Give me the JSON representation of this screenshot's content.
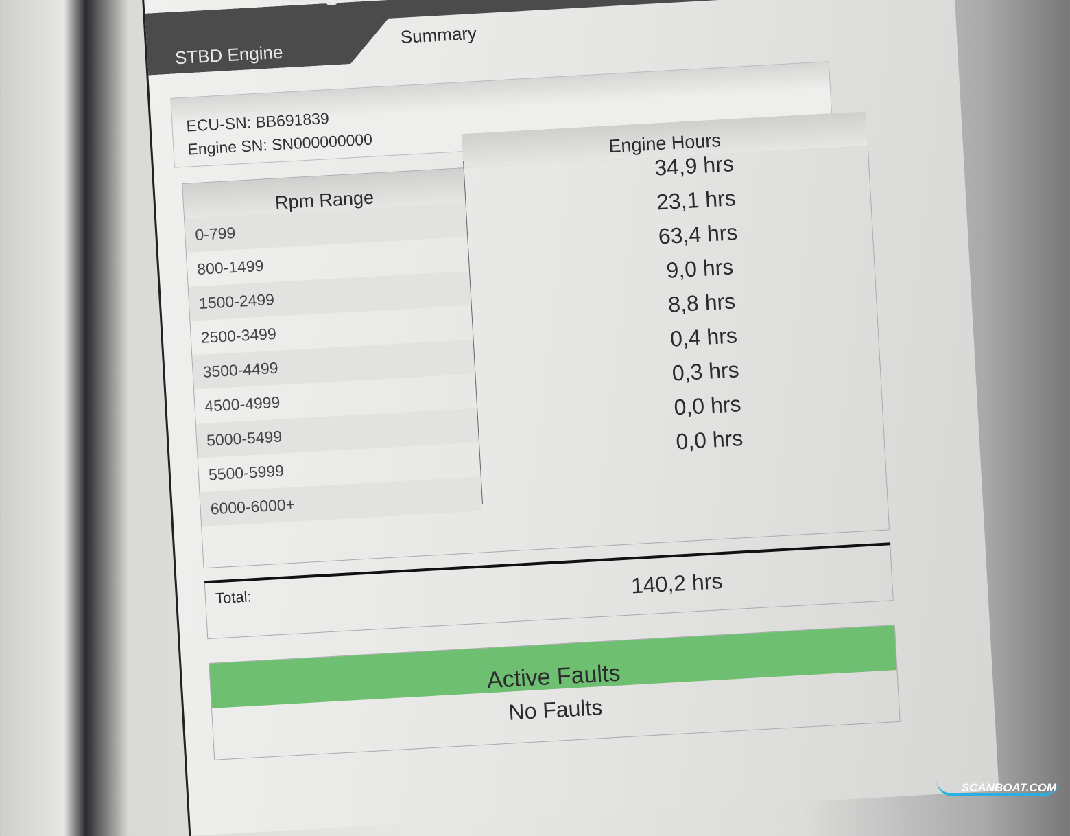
{
  "document": {
    "title": "Engine",
    "engine_tab": "STBD Engine",
    "summary_label": "Summary",
    "ecu_sn": "ECU-SN: BB691839",
    "engine_sn": "Engine SN: SN000000000",
    "table": {
      "rpm_header": "Rpm Range",
      "hours_header": "Engine Hours",
      "rows": [
        {
          "rpm": "0-799",
          "hours": "34,9 hrs"
        },
        {
          "rpm": "800-1499",
          "hours": "23,1 hrs"
        },
        {
          "rpm": "1500-2499",
          "hours": "63,4 hrs"
        },
        {
          "rpm": "2500-3499",
          "hours": "9,0 hrs"
        },
        {
          "rpm": "3500-4499",
          "hours": "8,8 hrs"
        },
        {
          "rpm": "4500-4999",
          "hours": "0,4 hrs"
        },
        {
          "rpm": "5000-5499",
          "hours": "0,3 hrs"
        },
        {
          "rpm": "5500-5999",
          "hours": "0,0 hrs"
        },
        {
          "rpm": "6000-6000+",
          "hours": "0,0 hrs"
        }
      ],
      "total_label": "Total:",
      "total_value": "140,2 hrs"
    },
    "faults": {
      "header": "Active Faults",
      "status": "No Faults",
      "header_color": "#6fbf73"
    }
  },
  "watermark": "SCANBOAT.COM"
}
